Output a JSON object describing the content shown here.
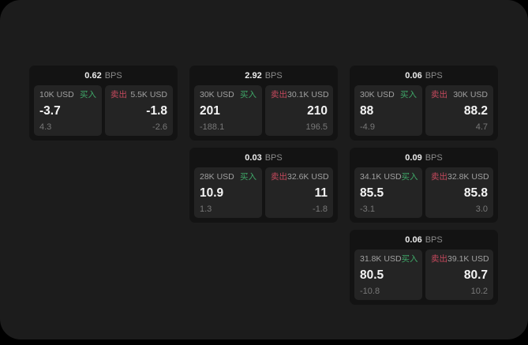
{
  "labels": {
    "buy": "买入",
    "sell": "卖出",
    "bps_unit": "BPS"
  },
  "colors": {
    "buy_green": "#3fa868",
    "sell_red": "#c5495d",
    "panel_bg": "#1c1c1c",
    "card_bg": "#131313",
    "subcard_bg": "#242424"
  },
  "cards": [
    {
      "bps": "0.62",
      "buy": {
        "amount": "10K USD",
        "price": "-3.7",
        "delta": "4.3"
      },
      "sell": {
        "amount": "5.5K USD",
        "price": "-1.8",
        "delta": "-2.6"
      }
    },
    {
      "bps": "2.92",
      "buy": {
        "amount": "30K USD",
        "price": "201",
        "delta": "-188.1"
      },
      "sell": {
        "amount": "30.1K USD",
        "price": "210",
        "delta": "196.5"
      }
    },
    {
      "bps": "0.06",
      "buy": {
        "amount": "30K USD",
        "price": "88",
        "delta": "-4.9"
      },
      "sell": {
        "amount": "30K USD",
        "price": "88.2",
        "delta": "4.7"
      }
    },
    {
      "bps": "0.03",
      "buy": {
        "amount": "28K USD",
        "price": "10.9",
        "delta": "1.3"
      },
      "sell": {
        "amount": "32.6K USD",
        "price": "11",
        "delta": "-1.8"
      }
    },
    {
      "bps": "0.09",
      "buy": {
        "amount": "34.1K USD",
        "price": "85.5",
        "delta": "-3.1"
      },
      "sell": {
        "amount": "32.8K USD",
        "price": "85.8",
        "delta": "3.0"
      }
    },
    {
      "bps": "0.06",
      "buy": {
        "amount": "31.8K USD",
        "price": "80.5",
        "delta": "-10.8"
      },
      "sell": {
        "amount": "39.1K USD",
        "price": "80.7",
        "delta": "10.2"
      }
    }
  ]
}
